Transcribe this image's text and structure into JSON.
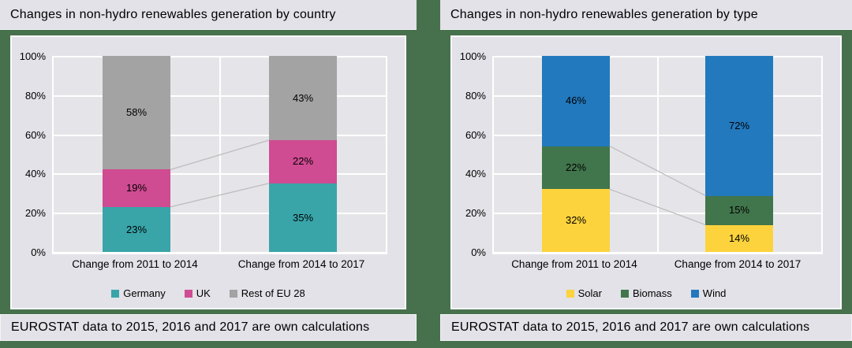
{
  "colors": {
    "page_background": "#47714d",
    "panel_background": "#e2e2e8",
    "plot_background": "#e5e5e9",
    "gridline": "#ffffff",
    "connector_line": "#bdbdbd",
    "text": "#000000"
  },
  "chart_data": [
    {
      "type": "bar",
      "stacked": true,
      "title": "Changes in non-hydro renewables generation by country",
      "source_note": "EUROSTAT data to 2015, 2016 and 2017 are own calculations",
      "categories": [
        "Change from 2011 to 2014",
        "Change from 2014 to 2017"
      ],
      "series": [
        {
          "name": "Germany",
          "color": "#39a5a9",
          "values": [
            23,
            35
          ]
        },
        {
          "name": "UK",
          "color": "#cf4b92",
          "values": [
            19,
            22
          ]
        },
        {
          "name": "Rest of EU 28",
          "color": "#a3a3a3",
          "values": [
            58,
            43
          ]
        }
      ],
      "unit": "%",
      "ylim": [
        0,
        100
      ],
      "yticks": [
        0,
        20,
        40,
        60,
        80,
        100
      ],
      "ytick_suffix": "%",
      "grid": true,
      "legend_position": "bottom",
      "bar_value_labels": true,
      "connector_lines": true
    },
    {
      "type": "bar",
      "stacked": true,
      "title": "Changes in non-hydro renewables generation by type",
      "source_note": "EUROSTAT data to 2015, 2016 and 2017 are own calculations",
      "categories": [
        "Change from 2011 to 2014",
        "Change from 2014 to 2017"
      ],
      "series": [
        {
          "name": "Solar",
          "color": "#fcd33d",
          "values": [
            32,
            14
          ]
        },
        {
          "name": "Biomass",
          "color": "#41754c",
          "values": [
            22,
            15
          ]
        },
        {
          "name": "Wind",
          "color": "#2279be",
          "values": [
            46,
            72
          ]
        }
      ],
      "unit": "%",
      "ylim": [
        0,
        100
      ],
      "yticks": [
        0,
        20,
        40,
        60,
        80,
        100
      ],
      "ytick_suffix": "%",
      "grid": true,
      "legend_position": "bottom",
      "bar_value_labels": true,
      "connector_lines": true
    }
  ]
}
